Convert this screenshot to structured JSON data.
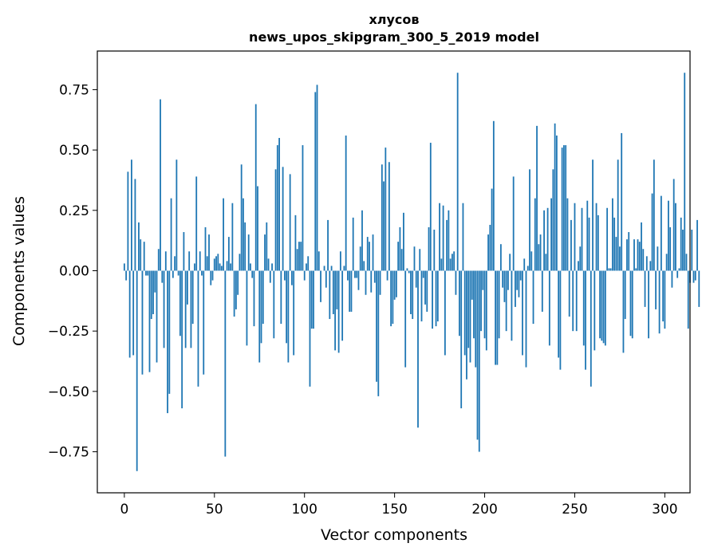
{
  "chart_data": {
    "type": "bar",
    "title": "хлусов",
    "subtitle": "news_upos_skipgram_300_5_2019 model",
    "xlabel": "Vector components",
    "ylabel": "Components values",
    "xlim": [
      -15,
      314
    ],
    "ylim": [
      -0.92,
      0.91
    ],
    "xticks": [
      0,
      50,
      100,
      150,
      200,
      250,
      300
    ],
    "xtick_labels": [
      "0",
      "50",
      "100",
      "150",
      "200",
      "250",
      "300"
    ],
    "yticks": [
      -0.75,
      -0.5,
      -0.25,
      0.0,
      0.25,
      0.5,
      0.75
    ],
    "ytick_labels": [
      "−0.75",
      "−0.50",
      "−0.25",
      "0.00",
      "0.25",
      "0.50",
      "0.75"
    ],
    "grid": false,
    "bar_color": "#1f77b4",
    "values": [
      0.03,
      -0.04,
      0.41,
      -0.36,
      0.46,
      -0.35,
      0.38,
      -0.83,
      0.2,
      0.13,
      -0.43,
      0.12,
      -0.02,
      -0.02,
      -0.42,
      -0.2,
      -0.18,
      -0.09,
      -0.38,
      0.09,
      0.71,
      -0.05,
      -0.32,
      0.08,
      -0.59,
      -0.51,
      0.3,
      -0.03,
      0.06,
      0.46,
      -0.02,
      -0.27,
      -0.57,
      0.16,
      -0.32,
      -0.14,
      0.08,
      -0.32,
      -0.22,
      0.03,
      0.39,
      -0.48,
      0.08,
      -0.02,
      -0.43,
      0.18,
      0.06,
      0.15,
      -0.06,
      -0.04,
      0.05,
      0.06,
      0.07,
      0.03,
      0.02,
      0.3,
      -0.77,
      0.04,
      0.14,
      0.03,
      0.28,
      -0.19,
      -0.16,
      -0.1,
      0.07,
      0.44,
      0.3,
      0.2,
      -0.31,
      0.15,
      0.03,
      -0.03,
      -0.23,
      0.69,
      0.35,
      -0.38,
      -0.3,
      -0.22,
      0.15,
      0.2,
      0.05,
      -0.05,
      0.03,
      -0.28,
      0.42,
      0.52,
      0.55,
      -0.22,
      0.43,
      -0.04,
      -0.3,
      -0.38,
      0.4,
      -0.06,
      -0.35,
      0.23,
      0.09,
      0.12,
      0.12,
      0.52,
      -0.04,
      0.03,
      0.06,
      -0.48,
      -0.24,
      -0.24,
      0.74,
      0.77,
      0.08,
      -0.13,
      0.0,
      0.02,
      -0.07,
      0.21,
      -0.2,
      0.02,
      -0.18,
      -0.33,
      -0.16,
      -0.34,
      0.08,
      -0.29,
      0.02,
      0.56,
      -0.04,
      -0.17,
      -0.17,
      0.22,
      -0.03,
      -0.03,
      -0.08,
      0.1,
      0.25,
      0.04,
      -0.1,
      0.14,
      0.12,
      -0.09,
      0.15,
      -0.05,
      -0.46,
      -0.52,
      -0.1,
      0.44,
      0.37,
      0.51,
      -0.04,
      0.45,
      -0.23,
      -0.22,
      -0.12,
      -0.11,
      0.12,
      0.18,
      0.09,
      0.24,
      -0.4,
      0.01,
      -0.01,
      -0.18,
      -0.2,
      0.1,
      -0.07,
      -0.65,
      0.09,
      -0.21,
      -0.03,
      -0.14,
      -0.17,
      0.18,
      0.53,
      -0.24,
      0.17,
      -0.23,
      -0.21,
      0.28,
      0.05,
      0.27,
      -0.35,
      0.21,
      0.25,
      0.05,
      0.07,
      0.08,
      -0.1,
      0.82,
      -0.27,
      -0.57,
      0.28,
      -0.35,
      -0.45,
      -0.32,
      -0.38,
      -0.12,
      -0.28,
      -0.4,
      -0.7,
      -0.75,
      -0.25,
      -0.08,
      -0.28,
      -0.33,
      0.15,
      0.19,
      0.34,
      0.62,
      -0.39,
      -0.39,
      -0.28,
      0.11,
      -0.07,
      -0.13,
      -0.25,
      -0.08,
      0.07,
      -0.29,
      0.39,
      -0.15,
      -0.08,
      -0.11,
      -0.04,
      -0.35,
      0.05,
      -0.4,
      0.02,
      0.42,
      0.08,
      -0.22,
      0.3,
      0.6,
      0.11,
      0.15,
      -0.17,
      0.25,
      0.07,
      0.26,
      -0.31,
      0.3,
      0.42,
      0.61,
      0.56,
      -0.36,
      -0.41,
      0.51,
      0.52,
      0.52,
      0.3,
      -0.19,
      0.21,
      -0.25,
      0.28,
      -0.25,
      0.04,
      0.1,
      0.26,
      -0.31,
      -0.41,
      0.29,
      0.22,
      -0.48,
      0.46,
      -0.33,
      0.28,
      0.23,
      -0.28,
      -0.29,
      -0.3,
      -0.31,
      0.26,
      0.01,
      0.01,
      0.3,
      0.22,
      0.14,
      0.46,
      0.1,
      0.57,
      -0.34,
      -0.2,
      0.13,
      0.16,
      -0.27,
      -0.28,
      0.13,
      0.01,
      0.13,
      0.12,
      0.2,
      0.09,
      -0.15,
      0.06,
      -0.28,
      0.04,
      0.32,
      0.46,
      -0.16,
      0.1,
      -0.26,
      0.31,
      -0.21,
      -0.24,
      0.07,
      0.29,
      0.18,
      -0.07,
      0.38,
      0.28,
      -0.03,
      0.01,
      0.22,
      0.17,
      0.82,
      0.07,
      -0.24,
      -0.05,
      0.17,
      -0.05,
      -0.04,
      0.21,
      -0.15
    ]
  }
}
